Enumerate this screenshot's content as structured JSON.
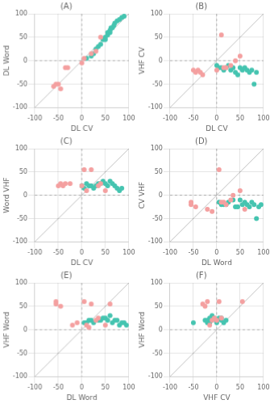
{
  "chart_data": [
    {
      "type": "scatter",
      "title": "(A)",
      "x_label": "DL CV",
      "y_label": "DL Word",
      "series": [
        {
          "color": "#45C4B0",
          "x": [
            10,
            20,
            25,
            30,
            35,
            40,
            45,
            50,
            50,
            55,
            55,
            60,
            60,
            62,
            65,
            68,
            70,
            75,
            80,
            85,
            90
          ],
          "values": [
            5,
            10,
            15,
            25,
            30,
            35,
            45,
            45,
            50,
            55,
            60,
            60,
            65,
            70,
            70,
            75,
            80,
            85,
            88,
            92,
            95
          ]
        },
        {
          "color": "#F4A0A0",
          "x": [
            -60,
            -55,
            -50,
            -45,
            -35,
            -30,
            0,
            5,
            20,
            30,
            40
          ],
          "values": [
            -55,
            -50,
            -50,
            -60,
            -15,
            -15,
            -5,
            5,
            15,
            20,
            50
          ]
        }
      ],
      "xlim": [
        -100,
        100
      ],
      "xticks": [
        -100,
        -50,
        0,
        50,
        100
      ],
      "ylim": [
        -100,
        100
      ],
      "yticks": [
        -100,
        -50,
        0,
        50,
        100
      ],
      "grid": true
    },
    {
      "type": "scatter",
      "title": "(B)",
      "x_label": "DL CV",
      "y_label": "VHF CV",
      "series": [
        {
          "color": "#45C4B0",
          "x": [
            0,
            5,
            10,
            15,
            20,
            25,
            30,
            35,
            40,
            45,
            50,
            55,
            60,
            65,
            70,
            75,
            80,
            85
          ],
          "values": [
            -10,
            -15,
            -15,
            -20,
            -15,
            -10,
            -20,
            -15,
            -25,
            -30,
            -15,
            -20,
            -15,
            -20,
            -25,
            -20,
            -50,
            -25
          ]
        },
        {
          "color": "#F4A0A0",
          "x": [
            -50,
            -45,
            -40,
            -35,
            -30,
            0,
            10,
            15,
            20,
            30,
            40,
            50
          ],
          "values": [
            -20,
            -25,
            -20,
            -25,
            -30,
            -20,
            55,
            -15,
            -15,
            -10,
            0,
            10
          ]
        }
      ],
      "xlim": [
        -100,
        100
      ],
      "xticks": [
        -100,
        -50,
        0,
        50,
        100
      ],
      "ylim": [
        -100,
        100
      ],
      "yticks": [
        -100,
        -50,
        0,
        50,
        100
      ],
      "grid": true
    },
    {
      "type": "scatter",
      "title": "(C)",
      "x_label": "DL CV",
      "y_label": "Word VHF",
      "series": [
        {
          "color": "#45C4B0",
          "x": [
            0,
            5,
            10,
            15,
            20,
            25,
            30,
            35,
            40,
            45,
            50,
            55,
            60,
            65,
            70,
            75,
            80,
            85
          ],
          "values": [
            20,
            15,
            25,
            20,
            20,
            15,
            20,
            25,
            25,
            30,
            25,
            20,
            30,
            25,
            20,
            15,
            10,
            15
          ]
        },
        {
          "color": "#F4A0A0",
          "x": [
            -50,
            -45,
            -40,
            -35,
            0,
            5,
            10,
            20,
            35,
            40,
            50,
            -25
          ],
          "values": [
            20,
            25,
            20,
            25,
            20,
            55,
            10,
            55,
            20,
            25,
            10,
            25
          ]
        }
      ],
      "xlim": [
        -100,
        100
      ],
      "xticks": [
        -100,
        -50,
        0,
        50,
        100
      ],
      "ylim": [
        -100,
        100
      ],
      "yticks": [
        -100,
        -50,
        0,
        50,
        100
      ],
      "grid": true
    },
    {
      "type": "scatter",
      "title": "(D)",
      "x_label": "DL Word",
      "y_label": "CV VHF",
      "series": [
        {
          "color": "#45C4B0",
          "x": [
            5,
            10,
            15,
            20,
            25,
            35,
            40,
            45,
            50,
            55,
            60,
            65,
            70,
            75,
            80,
            85,
            90,
            95
          ],
          "values": [
            -15,
            -20,
            -20,
            -20,
            -15,
            -10,
            -25,
            -25,
            -10,
            -20,
            -15,
            -20,
            -25,
            -15,
            -20,
            -50,
            -25,
            -20
          ]
        },
        {
          "color": "#F4A0A0",
          "x": [
            -55,
            -55,
            -45,
            -10,
            5,
            10,
            15,
            20,
            30,
            35,
            50,
            60,
            -20
          ],
          "values": [
            -20,
            -15,
            -25,
            -35,
            55,
            -15,
            -15,
            -20,
            -10,
            0,
            10,
            -30,
            -30
          ]
        }
      ],
      "xlim": [
        -100,
        100
      ],
      "xticks": [
        -100,
        -50,
        0,
        50,
        100
      ],
      "ylim": [
        -100,
        100
      ],
      "yticks": [
        -100,
        -50,
        0,
        50,
        100
      ],
      "grid": true
    },
    {
      "type": "scatter",
      "title": "(E)",
      "x_label": "DL Word",
      "y_label": "VHF Word",
      "series": [
        {
          "color": "#45C4B0",
          "x": [
            5,
            10,
            15,
            20,
            25,
            35,
            40,
            45,
            50,
            55,
            60,
            65,
            70,
            75,
            80,
            85,
            90,
            95
          ],
          "values": [
            15,
            15,
            20,
            20,
            15,
            20,
            20,
            25,
            25,
            20,
            30,
            15,
            20,
            20,
            10,
            15,
            15,
            10
          ]
        },
        {
          "color": "#F4A0A0",
          "x": [
            -55,
            -55,
            -45,
            -10,
            5,
            10,
            15,
            20,
            30,
            35,
            50,
            60,
            -20
          ],
          "values": [
            60,
            55,
            50,
            15,
            60,
            10,
            5,
            55,
            20,
            25,
            10,
            55,
            10
          ]
        }
      ],
      "xlim": [
        -100,
        100
      ],
      "xticks": [
        -100,
        -50,
        0,
        50,
        100
      ],
      "ylim": [
        -100,
        100
      ],
      "yticks": [
        -100,
        -50,
        0,
        50,
        100
      ],
      "grid": true
    },
    {
      "type": "scatter",
      "title": "(F)",
      "x_label": "VHF CV",
      "y_label": "VHF Word",
      "series": [
        {
          "color": "#45C4B0",
          "x": [
            -50,
            -25,
            -20,
            -20,
            -15,
            -15,
            -15,
            -10,
            -10,
            -5,
            0,
            0,
            5,
            10,
            10,
            15,
            20
          ],
          "values": [
            15,
            20,
            20,
            15,
            25,
            15,
            20,
            30,
            20,
            25,
            20,
            15,
            25,
            20,
            25,
            15,
            20
          ]
        },
        {
          "color": "#F4A0A0",
          "x": [
            -30,
            -25,
            -20,
            -15,
            -10,
            -5,
            0,
            5,
            10,
            55
          ],
          "values": [
            55,
            50,
            60,
            10,
            20,
            25,
            20,
            60,
            25,
            60
          ]
        }
      ],
      "xlim": [
        -100,
        100
      ],
      "xticks": [
        -100,
        -50,
        0,
        50,
        100
      ],
      "ylim": [
        -100,
        100
      ],
      "yticks": [
        -100,
        -50,
        0,
        50,
        100
      ],
      "grid": true
    }
  ]
}
